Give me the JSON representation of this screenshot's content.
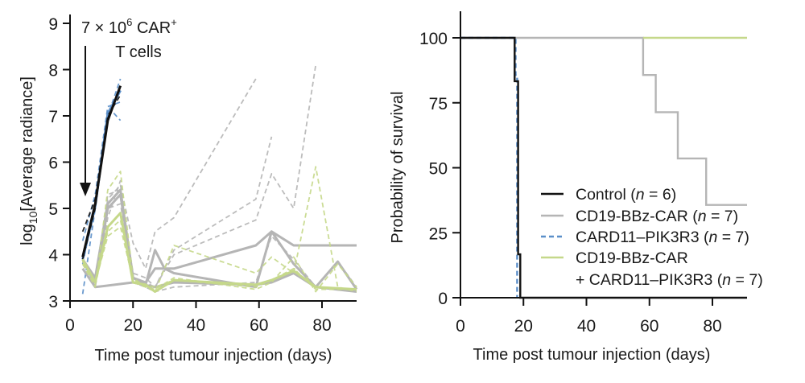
{
  "chart_data": [
    {
      "type": "line",
      "ylabel_main": "log",
      "ylabel_sub": "10",
      "ylabel_rest": "[Average radiance]",
      "xlabel": "Time post tumour injection (days)",
      "xlim": [
        0,
        91
      ],
      "ylim": [
        3,
        9
      ],
      "xticks": [
        0,
        20,
        40,
        60,
        80
      ],
      "yticks": [
        3,
        4,
        5,
        6,
        7,
        8,
        9
      ],
      "annotation": {
        "line1": "7 × 10",
        "sup1": "6",
        "line1b": " CAR",
        "sup2": "+",
        "line2": "T cells",
        "arrow_x_day": 4
      },
      "series": [
        {
          "group": "CARD11-PIK3R3",
          "style": "dashed",
          "color": "#5b8fc9",
          "points": [
            [
              4,
              3.15
            ],
            [
              8,
              5.0
            ],
            [
              12,
              7.0
            ],
            [
              16,
              7.8
            ]
          ]
        },
        {
          "group": "CARD11-PIK3R3",
          "style": "dashed",
          "color": "#5b8fc9",
          "points": [
            [
              4,
              3.8
            ],
            [
              8,
              5.1
            ],
            [
              12,
              7.1
            ],
            [
              14,
              7.05
            ],
            [
              16,
              6.9
            ]
          ]
        },
        {
          "group": "CARD11-PIK3R3",
          "style": "dashed",
          "color": "#5b8fc9",
          "points": [
            [
              4,
              4.3
            ],
            [
              8,
              5.3
            ],
            [
              12,
              7.2
            ],
            [
              16,
              7.3
            ]
          ]
        },
        {
          "group": "CARD11-PIK3R3",
          "style": "solid",
          "color": "#5b8fc9",
          "points": [
            [
              4,
              3.9
            ],
            [
              8,
              5.05
            ],
            [
              12,
              7.05
            ],
            [
              16,
              7.55
            ]
          ]
        },
        {
          "group": "Control",
          "style": "dashed",
          "color": "#111111",
          "points": [
            [
              4,
              4.5
            ],
            [
              8,
              5.2
            ],
            [
              12,
              7.0
            ],
            [
              16,
              7.45
            ]
          ]
        },
        {
          "group": "Control",
          "style": "dashed",
          "color": "#111111",
          "points": [
            [
              4,
              3.9
            ],
            [
              8,
              5.0
            ],
            [
              12,
              6.95
            ],
            [
              16,
              7.6
            ]
          ]
        },
        {
          "group": "Control",
          "style": "solid",
          "color": "#111111",
          "points": [
            [
              4,
              3.95
            ],
            [
              8,
              5.1
            ],
            [
              12,
              6.9
            ],
            [
              16,
              7.65
            ]
          ]
        },
        {
          "group": "CD19-BBz-CAR",
          "style": "dashed",
          "color": "#b5b5b5",
          "points": [
            [
              4,
              3.9
            ],
            [
              8,
              3.5
            ],
            [
              12,
              5.2
            ],
            [
              16,
              5.5
            ],
            [
              20,
              4.25
            ],
            [
              24,
              3.7
            ],
            [
              27,
              4.5
            ],
            [
              33,
              4.8
            ],
            [
              59,
              7.8
            ]
          ]
        },
        {
          "group": "CD19-BBz-CAR",
          "style": "dashed",
          "color": "#b5b5b5",
          "points": [
            [
              4,
              3.8
            ],
            [
              8,
              3.4
            ],
            [
              12,
              5.3
            ],
            [
              16,
              5.4
            ],
            [
              20,
              3.6
            ],
            [
              24,
              3.5
            ],
            [
              27,
              3.3
            ],
            [
              33,
              4.1
            ],
            [
              59,
              5.2
            ],
            [
              64,
              6.55
            ]
          ]
        },
        {
          "group": "CD19-BBz-CAR",
          "style": "dashed",
          "color": "#b5b5b5",
          "points": [
            [
              4,
              3.85
            ],
            [
              8,
              3.45
            ],
            [
              12,
              5.0
            ],
            [
              16,
              5.1
            ],
            [
              20,
              3.5
            ],
            [
              24,
              3.4
            ],
            [
              27,
              3.3
            ],
            [
              33,
              4.0
            ],
            [
              59,
              4.75
            ],
            [
              64,
              5.75
            ],
            [
              71,
              5.0
            ],
            [
              78,
              8.1
            ]
          ]
        },
        {
          "group": "CD19-BBz-CAR",
          "style": "dashed",
          "color": "#b5b5b5",
          "points": [
            [
              4,
              3.9
            ],
            [
              8,
              3.3
            ],
            [
              12,
              4.8
            ],
            [
              16,
              5.6
            ],
            [
              20,
              3.4
            ],
            [
              24,
              3.3
            ],
            [
              27,
              3.2
            ],
            [
              33,
              3.3
            ],
            [
              59,
              3.4
            ],
            [
              64,
              4.4
            ],
            [
              71,
              3.9
            ],
            [
              78,
              3.3
            ],
            [
              85,
              3.85
            ],
            [
              91,
              3.3
            ]
          ]
        },
        {
          "group": "CD19-BBz-CAR",
          "style": "solid",
          "color": "#b5b5b5",
          "points": [
            [
              4,
              3.9
            ],
            [
              8,
              3.5
            ],
            [
              12,
              5.1
            ],
            [
              16,
              5.4
            ],
            [
              20,
              3.5
            ],
            [
              24,
              3.4
            ],
            [
              27,
              3.7
            ],
            [
              33,
              3.7
            ],
            [
              59,
              4.2
            ],
            [
              64,
              4.5
            ],
            [
              71,
              4.2
            ],
            [
              91,
              4.2
            ]
          ]
        },
        {
          "group": "CD19-BBz-CAR",
          "style": "solid",
          "color": "#b5b5b5",
          "points": [
            [
              4,
              3.9
            ],
            [
              8,
              3.4
            ],
            [
              12,
              5.0
            ],
            [
              16,
              5.3
            ],
            [
              20,
              3.5
            ],
            [
              24,
              3.35
            ],
            [
              27,
              4.1
            ],
            [
              30,
              3.7
            ],
            [
              33,
              3.6
            ],
            [
              59,
              3.3
            ],
            [
              64,
              4.5
            ],
            [
              71,
              3.8
            ],
            [
              78,
              3.3
            ],
            [
              85,
              3.85
            ],
            [
              91,
              3.25
            ]
          ]
        },
        {
          "group": "CD19-BBz-CAR",
          "style": "solid",
          "color": "#b5b5b5",
          "points": [
            [
              4,
              3.7
            ],
            [
              8,
              3.3
            ],
            [
              20,
              3.4
            ],
            [
              27,
              3.3
            ],
            [
              33,
              3.4
            ],
            [
              59,
              3.35
            ],
            [
              64,
              3.4
            ],
            [
              71,
              3.6
            ],
            [
              78,
              3.3
            ],
            [
              91,
              3.2
            ]
          ]
        },
        {
          "group": "CD19-BBz-CAR + CARD11-PIK3R3",
          "style": "dashed",
          "color": "#c5d88a",
          "points": [
            [
              4,
              3.8
            ],
            [
              8,
              3.3
            ],
            [
              12,
              5.4
            ],
            [
              16,
              5.8
            ],
            [
              20,
              3.5
            ],
            [
              24,
              3.3
            ],
            [
              27,
              3.2
            ],
            [
              33,
              4.2
            ],
            [
              59,
              3.6
            ],
            [
              64,
              3.95
            ],
            [
              71,
              3.6
            ],
            [
              78,
              5.9
            ],
            [
              85,
              3.3
            ],
            [
              91,
              3.2
            ]
          ]
        },
        {
          "group": "CD19-BBz-CAR + CARD11-PIK3R3",
          "style": "dashed",
          "color": "#c5d88a",
          "points": [
            [
              4,
              3.8
            ],
            [
              8,
              3.35
            ],
            [
              12,
              4.5
            ],
            [
              16,
              4.75
            ],
            [
              20,
              3.4
            ],
            [
              24,
              3.3
            ],
            [
              27,
              3.25
            ],
            [
              33,
              3.5
            ],
            [
              59,
              3.25
            ],
            [
              64,
              3.4
            ],
            [
              71,
              3.95
            ],
            [
              78,
              3.2
            ],
            [
              85,
              3.8
            ],
            [
              91,
              3.3
            ]
          ]
        },
        {
          "group": "CD19-BBz-CAR + CARD11-PIK3R3",
          "style": "dashed",
          "color": "#c5d88a",
          "points": [
            [
              4,
              3.85
            ],
            [
              8,
              3.4
            ],
            [
              12,
              4.4
            ],
            [
              16,
              4.6
            ],
            [
              20,
              3.45
            ],
            [
              24,
              3.35
            ],
            [
              27,
              3.3
            ],
            [
              33,
              3.45
            ],
            [
              59,
              3.3
            ],
            [
              64,
              3.45
            ],
            [
              71,
              3.7
            ],
            [
              78,
              3.25
            ],
            [
              91,
              3.25
            ]
          ]
        },
        {
          "group": "CD19-BBz-CAR + CARD11-PIK3R3",
          "style": "solid",
          "color": "#c5d88a",
          "points": [
            [
              4,
              3.9
            ],
            [
              8,
              3.4
            ],
            [
              12,
              4.6
            ],
            [
              16,
              4.9
            ],
            [
              20,
              3.4
            ],
            [
              24,
              3.35
            ],
            [
              27,
              3.2
            ],
            [
              33,
              3.45
            ],
            [
              59,
              3.35
            ],
            [
              64,
              3.45
            ],
            [
              71,
              3.65
            ],
            [
              78,
              3.3
            ],
            [
              91,
              3.25
            ]
          ]
        }
      ]
    },
    {
      "type": "line",
      "subtype": "kaplan-meier step",
      "ylabel": "Probability of survival",
      "xlabel": "Time post tumour injection (days)",
      "xlim": [
        0,
        91
      ],
      "ylim": [
        0,
        110
      ],
      "xticks": [
        0,
        20,
        40,
        60,
        80
      ],
      "yticks": [
        0,
        25,
        50,
        75,
        100
      ],
      "legend": "bottom-right",
      "series": [
        {
          "name": "CD19-BBz-CAR",
          "n_label": "(n = 7)",
          "n": "7",
          "style": "solid",
          "color": "#b5b5b5",
          "steps": [
            [
              0,
              100
            ],
            [
              58,
              85.7
            ],
            [
              62,
              71.4
            ],
            [
              69,
              53.6
            ],
            [
              78,
              35.7
            ],
            [
              91,
              35.7
            ]
          ]
        },
        {
          "name": "CD19-BBz-CAR + CARD11-PIK3R3",
          "n": "7",
          "style": "solid",
          "color": "#c5d88a",
          "steps": [
            [
              58,
              100
            ],
            [
              91,
              100
            ]
          ]
        },
        {
          "name": "CARD11–PIK3R3",
          "n": "7",
          "style": "dashed",
          "color": "#5b8fc9",
          "steps": [
            [
              0,
              100
            ],
            [
              17.5,
              85.7
            ],
            [
              18,
              0
            ]
          ]
        },
        {
          "name": "Control",
          "n": "6",
          "style": "solid",
          "color": "#111111",
          "steps": [
            [
              0,
              100
            ],
            [
              17.2,
              83.3
            ],
            [
              18.3,
              16.7
            ],
            [
              19,
              0
            ],
            [
              91,
              0
            ]
          ]
        }
      ],
      "legend_entries": [
        {
          "label": "Control (",
          "n": "6",
          "color": "#111111",
          "style": "solid"
        },
        {
          "label": "CD19-BBz-CAR (",
          "n": "7",
          "color": "#b5b5b5",
          "style": "solid"
        },
        {
          "label": "CARD11–PIK3R3 (",
          "n": "7",
          "color": "#5b8fc9",
          "style": "dashed"
        },
        {
          "label": "CD19-BBz-CAR",
          "label2": "+ CARD11–PIK3R3 (",
          "n": "7",
          "color": "#c5d88a",
          "style": "solid"
        }
      ],
      "n_symbol": "n",
      "eq": " = ",
      "close": ")"
    }
  ]
}
